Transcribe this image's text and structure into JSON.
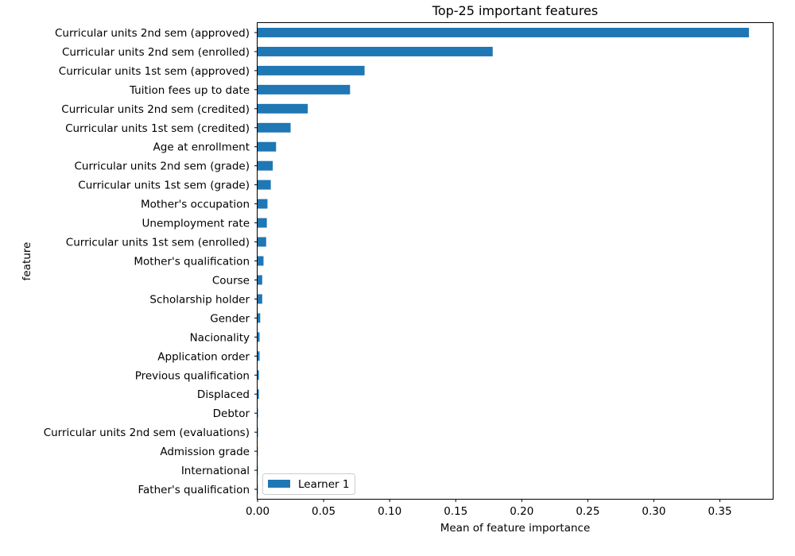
{
  "chart_data": {
    "type": "bar",
    "orientation": "horizontal",
    "title": "Top-25 important features",
    "xlabel": "Mean of feature importance",
    "ylabel": "feature",
    "xlim": [
      0.0,
      0.39
    ],
    "xticks": [
      "0.00",
      "0.05",
      "0.10",
      "0.15",
      "0.20",
      "0.25",
      "0.30",
      "0.35"
    ],
    "xtick_values": [
      0.0,
      0.05,
      0.1,
      0.15,
      0.2,
      0.25,
      0.3,
      0.35
    ],
    "grid": false,
    "legend_position": "lower-left",
    "categories": [
      "Curricular units 2nd sem (approved)",
      "Curricular units 2nd sem (enrolled)",
      "Curricular units 1st sem (approved)",
      "Tuition fees up to date",
      "Curricular units 2nd sem (credited)",
      "Curricular units 1st sem (credited)",
      "Age at enrollment",
      "Curricular units 2nd sem (grade)",
      "Curricular units 1st sem (grade)",
      "Mother's occupation",
      "Unemployment rate",
      "Curricular units 1st sem (enrolled)",
      "Mother's qualification",
      "Course",
      "Scholarship holder",
      "Gender",
      "Nacionality",
      "Application order",
      "Previous qualification",
      "Displaced",
      "Debtor",
      "Curricular units 2nd sem (evaluations)",
      "Admission grade",
      "International",
      "Father's qualification"
    ],
    "series": [
      {
        "name": "Learner 1",
        "color": "#1f77b4",
        "values": [
          0.372,
          0.178,
          0.081,
          0.07,
          0.038,
          0.025,
          0.014,
          0.0115,
          0.01,
          0.0075,
          0.007,
          0.0065,
          0.0045,
          0.0035,
          0.0035,
          0.002,
          0.0015,
          0.0015,
          0.001,
          0.001,
          0.0003,
          0.0003,
          0.0002,
          0.0002,
          0.0002
        ]
      }
    ]
  }
}
